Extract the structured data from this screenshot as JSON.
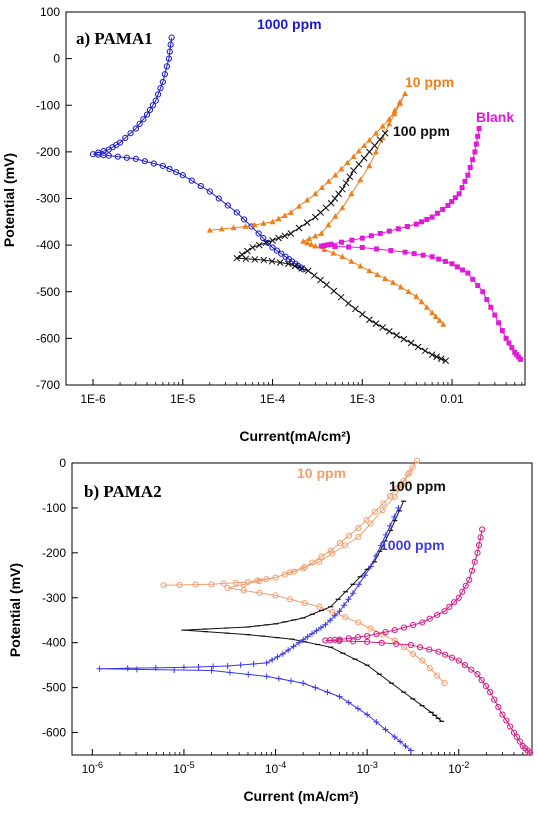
{
  "chart_data": [
    {
      "type": "line",
      "title": "a) PAMA1",
      "xlabel": "Current(mA/cm²)",
      "ylabel": "Potential (mV)",
      "xscale": "log",
      "xlim": [
        5e-07,
        0.065
      ],
      "ylim": [
        -700,
        100
      ],
      "xticks": [
        "1E-6",
        "1E-5",
        "1E-4",
        "1E-3",
        "0.01"
      ],
      "yticks": [
        "100",
        "0",
        "-100",
        "-200",
        "-300",
        "-400",
        "-500",
        "-600",
        "-700"
      ],
      "series": [
        {
          "name": "1000 ppm",
          "color": "#1a1acc",
          "marker": "circle",
          "x": [
            7.5e-06,
            7e-06,
            6e-06,
            5e-06,
            4e-06,
            3e-06,
            2e-06,
            1.5e-06,
            1e-06,
            1.5e-06,
            3e-06,
            6e-06,
            1e-05,
            2e-05,
            4e-05,
            7e-05,
            0.0001,
            0.00014,
            0.00018,
            0.00022
          ],
          "y": [
            45,
            0,
            -50,
            -90,
            -120,
            -150,
            -180,
            -195,
            -205,
            -208,
            -215,
            -230,
            -250,
            -285,
            -330,
            -375,
            -405,
            -425,
            -440,
            -452
          ]
        },
        {
          "name": "10 ppm",
          "color": "#f07e1a",
          "marker": "triangle",
          "x": [
            2e-05,
            5e-05,
            0.0001,
            0.00016,
            0.0003,
            0.0005,
            0.0008,
            0.0012,
            0.002,
            0.003,
            0.002,
            0.0012,
            0.0006,
            0.00035,
            0.00022,
            0.0003,
            0.0006,
            0.0012,
            0.0022,
            0.004,
            0.006,
            0.008
          ],
          "y": [
            -368,
            -360,
            -350,
            -330,
            -290,
            -250,
            -210,
            -175,
            -130,
            -75,
            -140,
            -230,
            -320,
            -375,
            -392,
            -402,
            -425,
            -455,
            -480,
            -510,
            -545,
            -570
          ]
        },
        {
          "name": "100 ppm",
          "color": "#111111",
          "marker": "x",
          "x": [
            0.0018,
            0.0012,
            0.0008,
            0.0006,
            0.00045,
            0.0003,
            0.00016,
            0.0001,
            6e-05,
            4e-05,
            8e-05,
            0.00015,
            0.00025,
            0.0004,
            0.0007,
            0.0012,
            0.002,
            0.0035,
            0.006,
            0.0085
          ],
          "y": [
            -160,
            -200,
            -240,
            -280,
            -310,
            -340,
            -375,
            -390,
            -405,
            -428,
            -432,
            -440,
            -455,
            -485,
            -525,
            -560,
            -585,
            -610,
            -635,
            -648
          ]
        },
        {
          "name": "Blank",
          "color": "#e01ad6",
          "marker": "square",
          "x": [
            0.02,
            0.018,
            0.015,
            0.012,
            0.009,
            0.006,
            0.004,
            0.002,
            0.001,
            0.00045,
            0.00035,
            0.001,
            0.003,
            0.006,
            0.01,
            0.015,
            0.022,
            0.03,
            0.04,
            0.05,
            0.058
          ],
          "y": [
            -150,
            -200,
            -250,
            -290,
            -315,
            -340,
            -355,
            -370,
            -385,
            -398,
            -402,
            -405,
            -415,
            -425,
            -440,
            -460,
            -500,
            -550,
            -600,
            -630,
            -645
          ]
        }
      ]
    },
    {
      "type": "line",
      "title": "b) PAMA2",
      "xlabel": "Current (mA/cm²)",
      "ylabel": "Potential (mV)",
      "xscale": "log",
      "xlim": [
        6e-07,
        0.063
      ],
      "ylim": [
        -650,
        0
      ],
      "xticks": [
        "10-6",
        "10-5",
        "10-4",
        "10-3",
        "10-2"
      ],
      "yticks": [
        "0",
        "-100",
        "-200",
        "-300",
        "-400",
        "-500",
        "-600"
      ],
      "series": [
        {
          "name": "10 ppm",
          "color": "#f0a070",
          "marker": "circle",
          "x": [
            6e-06,
            2e-05,
            5e-05,
            0.0001,
            0.0002,
            0.0004,
            0.0008,
            0.0015,
            0.0025,
            0.0035,
            0.002,
            0.0008,
            0.0003,
            0.0001,
            3e-05,
            0.0001,
            0.0003,
            0.0008,
            0.002,
            0.004,
            0.007
          ],
          "y": [
            -272,
            -270,
            -265,
            -255,
            -235,
            -195,
            -145,
            -90,
            -40,
            5,
            -75,
            -165,
            -220,
            -255,
            -278,
            -295,
            -320,
            -355,
            -395,
            -440,
            -490
          ]
        },
        {
          "name": "100 ppm",
          "color": "#111111",
          "marker": "dash",
          "x": [
            0.0025,
            0.0018,
            0.0012,
            0.0007,
            0.0004,
            0.0002,
            0.0001,
            5e-05,
            1e-05,
            5e-05,
            0.00015,
            0.0004,
            0.001,
            0.0025,
            0.005,
            0.0065
          ],
          "y": [
            -85,
            -150,
            -220,
            -270,
            -320,
            -345,
            -358,
            -365,
            -372,
            -382,
            -392,
            -410,
            -450,
            -510,
            -555,
            -575
          ]
        },
        {
          "name": "1000 ppm",
          "color": "#3a3ae6",
          "marker": "plus",
          "x": [
            0.0022,
            0.0016,
            0.0011,
            0.0007,
            0.0005,
            0.00035,
            0.00025,
            0.00018,
            0.00012,
            8e-05,
            3e-05,
            1e-05,
            1.2e-06,
            2e-05,
            8e-05,
            0.0002,
            0.0005,
            0.001,
            0.002,
            0.003
          ],
          "y": [
            -100,
            -160,
            -230,
            -290,
            -330,
            -360,
            -380,
            -400,
            -425,
            -445,
            -452,
            -455,
            -458,
            -462,
            -475,
            -490,
            -520,
            -560,
            -610,
            -640
          ]
        },
        {
          "name": "Blank",
          "color": "#d81a86",
          "marker": "circle",
          "x": [
            0.018,
            0.016,
            0.013,
            0.01,
            0.007,
            0.004,
            0.002,
            0.001,
            0.0005,
            0.00035,
            0.001,
            0.003,
            0.006,
            0.01,
            0.016,
            0.022,
            0.03,
            0.04,
            0.05,
            0.06
          ],
          "y": [
            -148,
            -200,
            -260,
            -300,
            -330,
            -355,
            -372,
            -385,
            -393,
            -395,
            -398,
            -405,
            -420,
            -440,
            -470,
            -510,
            -560,
            -600,
            -630,
            -645
          ]
        }
      ]
    }
  ]
}
